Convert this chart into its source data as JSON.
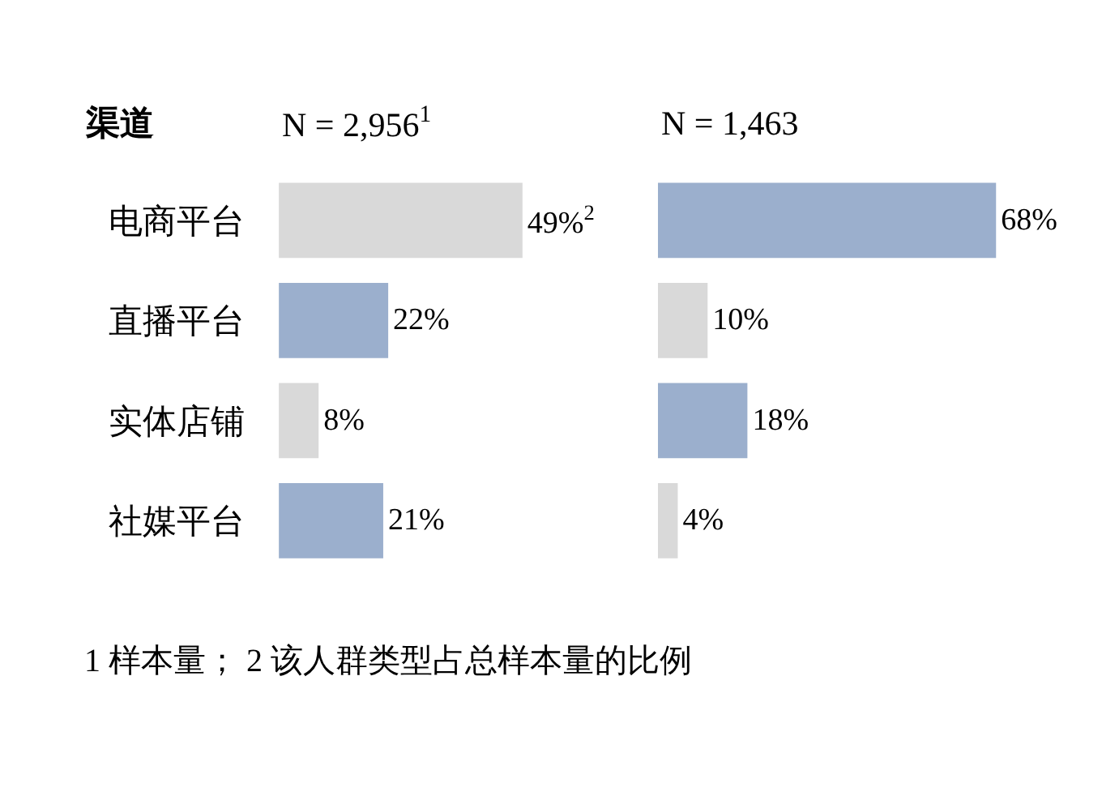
{
  "chart_data": [
    {
      "type": "bar",
      "orientation": "horizontal",
      "subtitle": "N = 2,956$^{1}$",
      "ylabel": "渠道",
      "categories": [
        "电商平台",
        "直播平台",
        "实体店铺",
        "社媒平台"
      ],
      "values": [
        49,
        22,
        8,
        21
      ],
      "colors": [
        "#d9d9d9",
        "#9bafcd",
        "#d9d9d9",
        "#9bafcd"
      ],
      "value_labels": [
        "49%$^{2}$",
        "22%",
        "8%",
        "21%"
      ],
      "tick_labels": "y",
      "annotations": [
        "1 样本量； 2 该人群类型占总样本量的比例"
      ]
    },
    {
      "type": "bar",
      "orientation": "horizontal",
      "subtitle": "N = 1,463",
      "categories": [
        null,
        null,
        null,
        null
      ],
      "values": [
        68,
        10,
        18,
        4
      ],
      "colors": [
        "#9bafcd",
        "#d9d9d9",
        "#9bafcd",
        "#d9d9d9"
      ],
      "value_labels": [
        "68%",
        "10%",
        "18%",
        "4%"
      ],
      "tick_labels": false
    }
  ]
}
